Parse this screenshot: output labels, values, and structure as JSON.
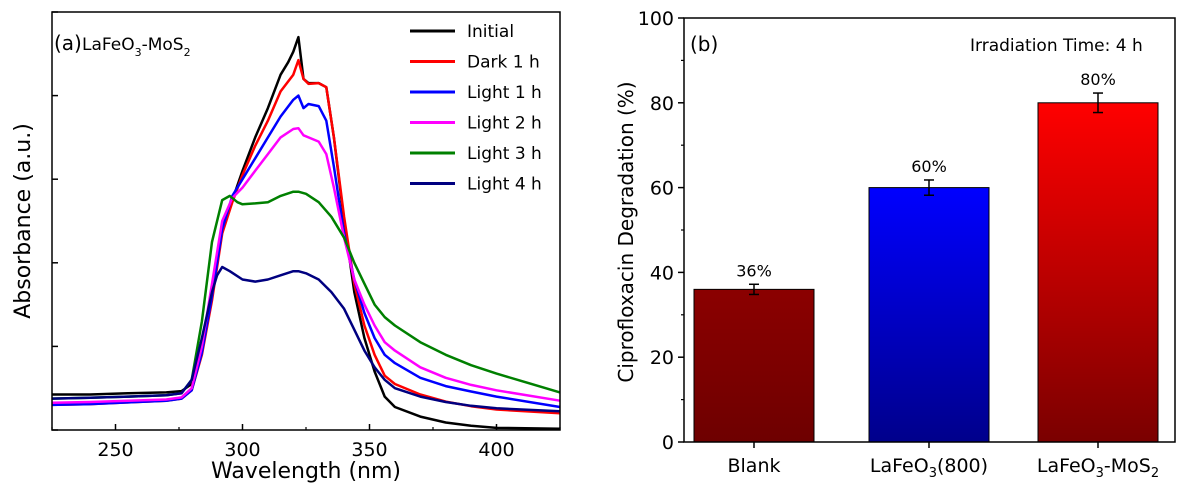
{
  "chart_data": [
    {
      "panel": "a",
      "type": "line",
      "panel_label": "(a)",
      "sample_label": "LaFeO3-MoS2",
      "sample_parts": {
        "a": "LaFeO",
        "b": "3",
        "c": "-MoS",
        "d": "2"
      },
      "xlabel": "Wavelength (nm)",
      "ylabel": "Absorbance (a.u.)",
      "xlim": [
        225,
        425
      ],
      "ylim": [
        0,
        1.0
      ],
      "y_tick_labels_shown": false,
      "xticks": [
        250,
        300,
        350,
        400
      ],
      "legend_position": "top-right",
      "series": [
        {
          "name": "Initial",
          "color": "#000000",
          "points": [
            [
              225,
              0.085
            ],
            [
              240,
              0.085
            ],
            [
              255,
              0.088
            ],
            [
              270,
              0.09
            ],
            [
              276,
              0.093
            ],
            [
              280,
              0.11
            ],
            [
              284,
              0.19
            ],
            [
              288,
              0.32
            ],
            [
              292,
              0.48
            ],
            [
              296,
              0.55
            ],
            [
              300,
              0.62
            ],
            [
              305,
              0.7
            ],
            [
              310,
              0.77
            ],
            [
              315,
              0.85
            ],
            [
              318,
              0.88
            ],
            [
              320,
              0.905
            ],
            [
              322,
              0.94
            ],
            [
              324,
              0.84
            ],
            [
              326,
              0.83
            ],
            [
              330,
              0.83
            ],
            [
              333,
              0.82
            ],
            [
              336,
              0.7
            ],
            [
              340,
              0.5
            ],
            [
              344,
              0.33
            ],
            [
              348,
              0.22
            ],
            [
              352,
              0.14
            ],
            [
              356,
              0.08
            ],
            [
              360,
              0.055
            ],
            [
              370,
              0.032
            ],
            [
              380,
              0.018
            ],
            [
              390,
              0.01
            ],
            [
              400,
              0.005
            ],
            [
              425,
              0.003
            ]
          ]
        },
        {
          "name": "Dark 1 h",
          "color": "#ff0000",
          "points": [
            [
              225,
              0.06
            ],
            [
              240,
              0.062
            ],
            [
              255,
              0.066
            ],
            [
              270,
              0.07
            ],
            [
              276,
              0.075
            ],
            [
              280,
              0.095
            ],
            [
              284,
              0.18
            ],
            [
              288,
              0.31
            ],
            [
              292,
              0.47
            ],
            [
              296,
              0.545
            ],
            [
              300,
              0.61
            ],
            [
              305,
              0.68
            ],
            [
              310,
              0.74
            ],
            [
              315,
              0.81
            ],
            [
              320,
              0.85
            ],
            [
              322,
              0.885
            ],
            [
              324,
              0.84
            ],
            [
              326,
              0.828
            ],
            [
              330,
              0.83
            ],
            [
              333,
              0.82
            ],
            [
              336,
              0.7
            ],
            [
              340,
              0.51
            ],
            [
              344,
              0.35
            ],
            [
              348,
              0.25
            ],
            [
              352,
              0.18
            ],
            [
              356,
              0.13
            ],
            [
              360,
              0.11
            ],
            [
              370,
              0.085
            ],
            [
              380,
              0.068
            ],
            [
              390,
              0.057
            ],
            [
              400,
              0.049
            ],
            [
              425,
              0.04
            ]
          ]
        },
        {
          "name": "Light 1 h",
          "color": "#0000ff",
          "points": [
            [
              225,
              0.06
            ],
            [
              240,
              0.062
            ],
            [
              255,
              0.066
            ],
            [
              270,
              0.07
            ],
            [
              276,
              0.075
            ],
            [
              280,
              0.095
            ],
            [
              284,
              0.185
            ],
            [
              288,
              0.32
            ],
            [
              292,
              0.48
            ],
            [
              296,
              0.56
            ],
            [
              300,
              0.6
            ],
            [
              305,
              0.65
            ],
            [
              310,
              0.7
            ],
            [
              315,
              0.75
            ],
            [
              320,
              0.79
            ],
            [
              322,
              0.8
            ],
            [
              324,
              0.77
            ],
            [
              326,
              0.78
            ],
            [
              330,
              0.775
            ],
            [
              333,
              0.74
            ],
            [
              336,
              0.63
            ],
            [
              340,
              0.47
            ],
            [
              344,
              0.36
            ],
            [
              348,
              0.28
            ],
            [
              352,
              0.22
            ],
            [
              356,
              0.18
            ],
            [
              360,
              0.16
            ],
            [
              370,
              0.125
            ],
            [
              380,
              0.105
            ],
            [
              390,
              0.092
            ],
            [
              400,
              0.08
            ],
            [
              425,
              0.055
            ]
          ]
        },
        {
          "name": "Light 2 h",
          "color": "#ff00ff",
          "points": [
            [
              225,
              0.065
            ],
            [
              240,
              0.067
            ],
            [
              255,
              0.07
            ],
            [
              270,
              0.073
            ],
            [
              276,
              0.078
            ],
            [
              280,
              0.1
            ],
            [
              284,
              0.2
            ],
            [
              288,
              0.35
            ],
            [
              292,
              0.5
            ],
            [
              296,
              0.555
            ],
            [
              300,
              0.58
            ],
            [
              305,
              0.62
            ],
            [
              310,
              0.66
            ],
            [
              315,
              0.7
            ],
            [
              320,
              0.72
            ],
            [
              322,
              0.722
            ],
            [
              324,
              0.705
            ],
            [
              326,
              0.7
            ],
            [
              330,
              0.69
            ],
            [
              333,
              0.66
            ],
            [
              336,
              0.58
            ],
            [
              340,
              0.46
            ],
            [
              344,
              0.36
            ],
            [
              348,
              0.3
            ],
            [
              352,
              0.25
            ],
            [
              356,
              0.21
            ],
            [
              360,
              0.19
            ],
            [
              370,
              0.15
            ],
            [
              380,
              0.125
            ],
            [
              390,
              0.108
            ],
            [
              400,
              0.095
            ],
            [
              425,
              0.07
            ]
          ]
        },
        {
          "name": "Light 3 h",
          "color": "#008000",
          "points": [
            [
              225,
              0.075
            ],
            [
              240,
              0.077
            ],
            [
              255,
              0.08
            ],
            [
              270,
              0.083
            ],
            [
              276,
              0.088
            ],
            [
              280,
              0.12
            ],
            [
              284,
              0.26
            ],
            [
              288,
              0.45
            ],
            [
              292,
              0.55
            ],
            [
              295,
              0.56
            ],
            [
              298,
              0.545
            ],
            [
              300,
              0.54
            ],
            [
              305,
              0.542
            ],
            [
              310,
              0.545
            ],
            [
              315,
              0.56
            ],
            [
              320,
              0.57
            ],
            [
              322,
              0.57
            ],
            [
              325,
              0.565
            ],
            [
              330,
              0.545
            ],
            [
              335,
              0.51
            ],
            [
              340,
              0.46
            ],
            [
              344,
              0.4
            ],
            [
              348,
              0.35
            ],
            [
              352,
              0.3
            ],
            [
              356,
              0.27
            ],
            [
              360,
              0.25
            ],
            [
              370,
              0.21
            ],
            [
              380,
              0.18
            ],
            [
              390,
              0.155
            ],
            [
              400,
              0.135
            ],
            [
              425,
              0.09
            ]
          ]
        },
        {
          "name": "Light 4 h",
          "color": "#000080",
          "points": [
            [
              225,
              0.075
            ],
            [
              240,
              0.077
            ],
            [
              255,
              0.08
            ],
            [
              270,
              0.083
            ],
            [
              276,
              0.088
            ],
            [
              280,
              0.12
            ],
            [
              284,
              0.22
            ],
            [
              288,
              0.33
            ],
            [
              290,
              0.37
            ],
            [
              292,
              0.39
            ],
            [
              295,
              0.38
            ],
            [
              300,
              0.36
            ],
            [
              305,
              0.355
            ],
            [
              310,
              0.36
            ],
            [
              315,
              0.37
            ],
            [
              320,
              0.38
            ],
            [
              322,
              0.38
            ],
            [
              325,
              0.375
            ],
            [
              330,
              0.36
            ],
            [
              335,
              0.33
            ],
            [
              340,
              0.29
            ],
            [
              344,
              0.24
            ],
            [
              348,
              0.19
            ],
            [
              352,
              0.15
            ],
            [
              356,
              0.12
            ],
            [
              360,
              0.1
            ],
            [
              370,
              0.08
            ],
            [
              380,
              0.067
            ],
            [
              390,
              0.058
            ],
            [
              400,
              0.052
            ],
            [
              425,
              0.045
            ]
          ]
        }
      ]
    },
    {
      "panel": "b",
      "type": "bar",
      "panel_label": "(b)",
      "annotation": "Irradiation Time: 4 h",
      "ylabel": "Ciprofloxacin Degradation (%)",
      "xlabel": "",
      "ylim": [
        0,
        100
      ],
      "yticks": [
        0,
        20,
        40,
        60,
        80,
        100
      ],
      "categories": [
        "Blank",
        "LaFeO3(800)",
        "LaFeO3-MoS2"
      ],
      "category_labels": [
        {
          "a": "Blank",
          "b": "",
          "c": "",
          "d": ""
        },
        {
          "a": "LaFeO",
          "b": "3",
          "c": "(800)",
          "d": ""
        },
        {
          "a": "LaFeO",
          "b": "3",
          "c": "-MoS",
          "d": "2"
        }
      ],
      "values": [
        36,
        60,
        80
      ],
      "errors": [
        1.2,
        1.8,
        2.3
      ],
      "value_labels": [
        "36%",
        "60%",
        "80%"
      ],
      "bar_gradients": [
        {
          "top": "#8b0000",
          "bottom": "#6e0000"
        },
        {
          "top": "#0000ff",
          "bottom": "#00008b"
        },
        {
          "top": "#ff0000",
          "bottom": "#7a0000"
        }
      ]
    }
  ]
}
